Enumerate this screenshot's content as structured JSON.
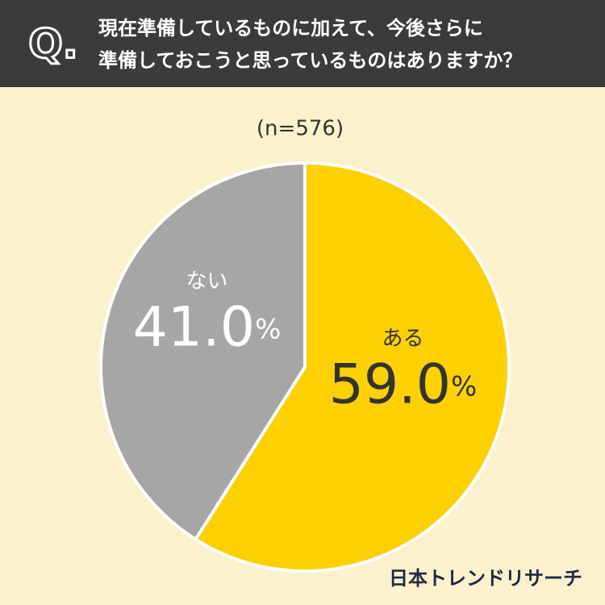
{
  "chart_data": {
    "type": "pie",
    "q_label": "Q.",
    "title": [
      "現在準備しているものに加えて、今後さらに",
      "準備しておこうと思っているものはありますか？"
    ],
    "subtitle": "(n=576)",
    "categories": [
      "ある",
      "ない"
    ],
    "values": [
      59.0,
      41.0
    ],
    "value_labels": [
      "59.0%",
      "41.0%"
    ],
    "colors": [
      "#fdd000",
      "#a6a6a6"
    ],
    "label_colors": [
      "#333333",
      "#ffffff"
    ],
    "source": "日本トレンドリサーチ"
  }
}
